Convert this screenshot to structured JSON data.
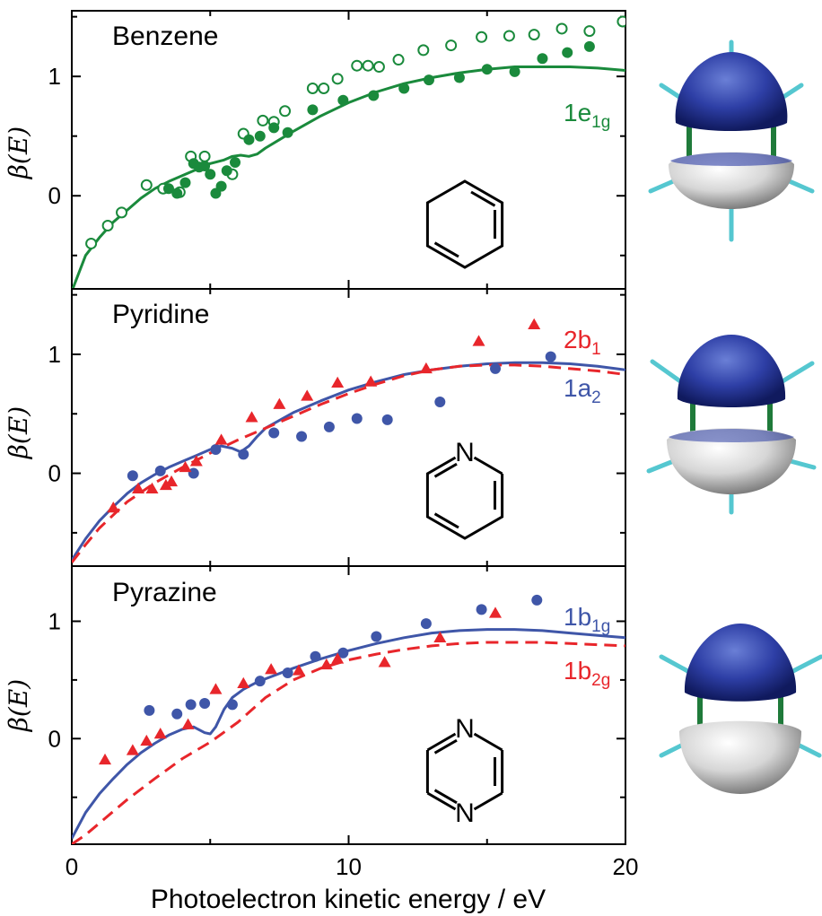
{
  "x_axis": {
    "label": "Photoelectron kinetic energy / eV",
    "ticks": [
      "0",
      "10",
      "20"
    ],
    "range": [
      0,
      20
    ]
  },
  "colors": {
    "green": "#1a8a3c",
    "blue": "#3f56a8",
    "red": "#e8262b",
    "axis": "#000000"
  },
  "chart_data": [
    {
      "type": "scatter",
      "title": "Benzene",
      "ylabel": "β(E)",
      "yticks": [
        "0",
        "1"
      ],
      "xlim": [
        0,
        20
      ],
      "ylim": [
        -0.78,
        1.55
      ],
      "series": [
        {
          "name": "1e1g",
          "kind": "line",
          "style": "solid",
          "color": "#1a8a3c",
          "x": [
            0,
            0.5,
            1,
            1.5,
            2,
            2.5,
            3,
            3.5,
            4,
            4.5,
            5,
            5.5,
            5.8,
            6.1,
            6.4,
            6.7,
            7,
            7.5,
            8,
            9,
            10,
            11,
            12,
            13,
            14,
            15,
            16,
            17,
            18,
            19,
            20
          ],
          "y": [
            -0.8,
            -0.5,
            -0.35,
            -0.22,
            -0.12,
            -0.02,
            0.06,
            0.12,
            0.17,
            0.22,
            0.27,
            0.3,
            0.33,
            0.34,
            0.33,
            0.35,
            0.4,
            0.47,
            0.54,
            0.67,
            0.78,
            0.87,
            0.94,
            0.99,
            1.03,
            1.06,
            1.08,
            1.08,
            1.08,
            1.07,
            1.05
          ]
        },
        {
          "name": "1e1g expt. (open)",
          "kind": "scatter",
          "marker": "circle-open",
          "color": "#1a8a3c",
          "x": [
            0.7,
            1.3,
            1.8,
            2.7,
            3.3,
            3.9,
            4.3,
            4.8,
            5.8,
            6.2,
            6.9,
            7.3,
            7.7,
            8.7,
            9.1,
            9.6,
            10.3,
            10.7,
            11.1,
            11.8,
            12.7,
            13.7,
            14.8,
            15.8,
            16.7,
            17.7,
            18.7,
            19.9
          ],
          "y": [
            -0.4,
            -0.25,
            -0.14,
            0.09,
            0.06,
            0.03,
            0.33,
            0.33,
            0.18,
            0.52,
            0.63,
            0.62,
            0.71,
            0.9,
            0.9,
            0.98,
            1.09,
            1.09,
            1.08,
            1.14,
            1.22,
            1.26,
            1.33,
            1.34,
            1.35,
            1.4,
            1.38,
            1.46
          ]
        },
        {
          "name": "1e1g expt. (filled)",
          "kind": "scatter",
          "marker": "circle-filled",
          "color": "#1a8a3c",
          "x": [
            3.5,
            3.8,
            4.1,
            4.4,
            4.6,
            4.8,
            5.0,
            5.2,
            5.4,
            5.6,
            5.9,
            6.4,
            6.8,
            7.3,
            7.8,
            8.7,
            9.8,
            10.9,
            12.0,
            12.9,
            14.0,
            15.0,
            16.0,
            17.0,
            17.9,
            18.7
          ],
          "y": [
            0.06,
            0.02,
            0.11,
            0.27,
            0.24,
            0.25,
            0.18,
            0.02,
            0.08,
            0.21,
            0.28,
            0.47,
            0.5,
            0.57,
            0.53,
            0.72,
            0.8,
            0.84,
            0.9,
            0.97,
            0.99,
            1.06,
            1.04,
            1.15,
            1.2,
            1.25
          ]
        }
      ]
    },
    {
      "type": "scatter",
      "title": "Pyridine",
      "ylabel": "β(E)",
      "yticks": [
        "0",
        "1"
      ],
      "xlim": [
        0,
        20
      ],
      "ylim": [
        -0.78,
        1.55
      ],
      "series": [
        {
          "name": "1a2",
          "kind": "line",
          "style": "solid",
          "color": "#3f56a8",
          "x": [
            0,
            0.5,
            1,
            1.5,
            2,
            2.5,
            3,
            3.5,
            4,
            4.5,
            5,
            5.4,
            5.8,
            6.1,
            6.4,
            6.7,
            7,
            8,
            9,
            10,
            11,
            12,
            13,
            14,
            15,
            16,
            17,
            18,
            19,
            20
          ],
          "y": [
            -0.73,
            -0.55,
            -0.4,
            -0.28,
            -0.17,
            -0.08,
            -0.01,
            0.05,
            0.1,
            0.15,
            0.2,
            0.23,
            0.21,
            0.18,
            0.23,
            0.31,
            0.38,
            0.51,
            0.61,
            0.7,
            0.77,
            0.83,
            0.87,
            0.9,
            0.92,
            0.93,
            0.93,
            0.92,
            0.9,
            0.87
          ]
        },
        {
          "name": "2b1",
          "kind": "line",
          "style": "dashed",
          "color": "#e8262b",
          "x": [
            0,
            0.5,
            1,
            2,
            3,
            4,
            5,
            6,
            7,
            8,
            9,
            10,
            11,
            12,
            13,
            14,
            15,
            16,
            17,
            18,
            19,
            20
          ],
          "y": [
            -0.75,
            -0.6,
            -0.46,
            -0.24,
            -0.08,
            0.05,
            0.17,
            0.28,
            0.38,
            0.48,
            0.58,
            0.67,
            0.75,
            0.82,
            0.87,
            0.9,
            0.91,
            0.91,
            0.9,
            0.88,
            0.86,
            0.83
          ]
        },
        {
          "name": "1a2 expt.",
          "kind": "scatter",
          "marker": "circle-filled",
          "color": "#3f56a8",
          "x": [
            2.2,
            3.2,
            4.4,
            5.2,
            6.2,
            7.3,
            8.3,
            9.3,
            10.3,
            11.4,
            13.3,
            15.3,
            17.3
          ],
          "y": [
            -0.02,
            0.02,
            0.0,
            0.2,
            0.16,
            0.34,
            0.31,
            0.39,
            0.46,
            0.45,
            0.6,
            0.88,
            0.98
          ]
        },
        {
          "name": "2b1 expt.",
          "kind": "scatter",
          "marker": "triangle-filled",
          "color": "#e8262b",
          "x": [
            1.5,
            2.4,
            2.9,
            3.4,
            3.6,
            4.1,
            4.5,
            5.4,
            6.5,
            7.5,
            8.5,
            9.6,
            10.8,
            12.8,
            14.7,
            16.7
          ],
          "y": [
            -0.29,
            -0.13,
            -0.13,
            -0.1,
            -0.07,
            0.05,
            0.1,
            0.28,
            0.47,
            0.58,
            0.65,
            0.76,
            0.77,
            0.88,
            1.11,
            1.25
          ]
        }
      ]
    },
    {
      "type": "scatter",
      "title": "Pyrazine",
      "ylabel": "β(E)",
      "yticks": [
        "0",
        "1"
      ],
      "xlim": [
        0,
        20
      ],
      "ylim": [
        -0.9,
        1.47
      ],
      "series": [
        {
          "name": "1b1g",
          "kind": "line",
          "style": "solid",
          "color": "#3f56a8",
          "x": [
            0,
            0.5,
            1,
            1.5,
            2,
            2.5,
            3,
            3.5,
            4,
            4.4,
            4.8,
            5.0,
            5.2,
            5.5,
            5.8,
            6.2,
            6.6,
            7,
            8,
            9,
            10,
            11,
            12,
            13,
            14,
            15,
            16,
            17,
            18,
            19,
            20
          ],
          "y": [
            -0.85,
            -0.63,
            -0.47,
            -0.34,
            -0.22,
            -0.12,
            -0.04,
            0.03,
            0.08,
            0.1,
            0.05,
            0.04,
            0.1,
            0.25,
            0.35,
            0.42,
            0.47,
            0.51,
            0.6,
            0.68,
            0.75,
            0.81,
            0.86,
            0.9,
            0.92,
            0.93,
            0.93,
            0.92,
            0.9,
            0.88,
            0.86
          ]
        },
        {
          "name": "1b2g",
          "kind": "line",
          "style": "dashed",
          "color": "#e8262b",
          "x": [
            0,
            0.5,
            1,
            2,
            3,
            4,
            5,
            6,
            7,
            8,
            9,
            10,
            11,
            12,
            13,
            14,
            15,
            16,
            17,
            18,
            19,
            20
          ],
          "y": [
            -0.9,
            -0.82,
            -0.72,
            -0.52,
            -0.34,
            -0.17,
            -0.03,
            0.14,
            0.35,
            0.5,
            0.6,
            0.67,
            0.72,
            0.76,
            0.79,
            0.81,
            0.82,
            0.82,
            0.82,
            0.81,
            0.8,
            0.79
          ]
        },
        {
          "name": "1b1g expt.",
          "kind": "scatter",
          "marker": "circle-filled",
          "color": "#3f56a8",
          "x": [
            2.8,
            3.8,
            4.3,
            4.8,
            5.8,
            6.8,
            7.8,
            8.8,
            9.8,
            11.0,
            12.8,
            14.8,
            16.8
          ],
          "y": [
            0.24,
            0.21,
            0.29,
            0.3,
            0.29,
            0.49,
            0.56,
            0.7,
            0.73,
            0.87,
            0.98,
            1.1,
            1.18
          ]
        },
        {
          "name": "1b2g expt.",
          "kind": "scatter",
          "marker": "triangle-filled",
          "color": "#e8262b",
          "x": [
            1.2,
            2.2,
            2.7,
            3.2,
            4.2,
            5.2,
            6.2,
            7.2,
            8.2,
            9.2,
            9.6,
            11.3,
            13.3,
            15.3
          ],
          "y": [
            -0.18,
            -0.1,
            -0.02,
            0.04,
            0.12,
            0.42,
            0.47,
            0.59,
            0.58,
            0.63,
            0.68,
            0.65,
            0.86,
            1.07
          ]
        }
      ]
    }
  ],
  "panels": [
    {
      "labels": [
        {
          "text": "1e",
          "sub": "1g",
          "color": "#1a8a3c"
        }
      ],
      "atoms": []
    },
    {
      "labels": [
        {
          "text": "2b",
          "sub": "1",
          "color": "#e8262b"
        },
        {
          "text": "1a",
          "sub": "2",
          "color": "#3f56a8"
        }
      ],
      "atoms": [
        "N"
      ]
    },
    {
      "labels": [
        {
          "text": "1b",
          "sub": "1g",
          "color": "#3f56a8"
        },
        {
          "text": "1b",
          "sub": "2g",
          "color": "#e8262b"
        }
      ],
      "atoms": [
        "N",
        "N"
      ]
    }
  ]
}
